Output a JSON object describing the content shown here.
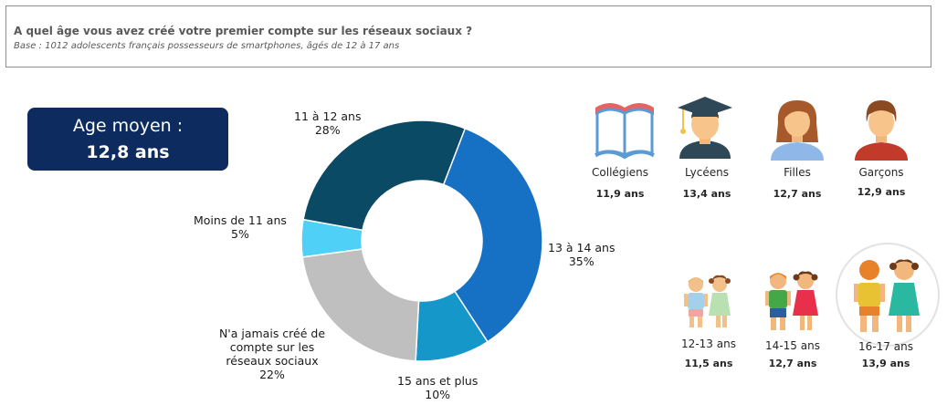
{
  "header": {
    "title": "A quel âge vous avez créé votre premier compte sur les réseaux sociaux ?",
    "subtitle": "Base : 1012 adolescents français possesseurs de smartphones, âgés de 12 à 17 ans"
  },
  "average": {
    "label": "Age moyen :",
    "value": "12,8 ans"
  },
  "chart_data": {
    "type": "pie",
    "donut": true,
    "slices": [
      {
        "label": "13 à 14 ans",
        "pct_label": "35%",
        "value": 35,
        "color": "#1670c3"
      },
      {
        "label": "15 ans et plus",
        "pct_label": "10%",
        "value": 10,
        "color": "#1597c9"
      },
      {
        "label": "N'a jamais créé de compte sur les réseaux sociaux",
        "pct_label": "22%",
        "value": 22,
        "color": "#bfbfbf"
      },
      {
        "label": "Moins de 11 ans",
        "pct_label": "5%",
        "value": 5,
        "color": "#4fd0f7"
      },
      {
        "label": "11 à 12 ans",
        "pct_label": "28%",
        "value": 28,
        "color": "#0a4a64"
      }
    ]
  },
  "segments": [
    {
      "label": "Collégiens",
      "value": "11,9 ans",
      "icon": "book-icon"
    },
    {
      "label": "Lycéens",
      "value": "13,4 ans",
      "icon": "graduate-icon"
    },
    {
      "label": "Filles",
      "value": "12,7 ans",
      "icon": "girl-icon"
    },
    {
      "label": "Garçons",
      "value": "12,9 ans",
      "icon": "boy-icon"
    },
    {
      "label": "12-13 ans",
      "value": "11,5 ans",
      "icon": "kids-12-13-icon"
    },
    {
      "label": "14-15 ans",
      "value": "12,7 ans",
      "icon": "kids-14-15-icon"
    },
    {
      "label": "16-17 ans",
      "value": "13,9 ans",
      "icon": "kids-16-17-icon"
    }
  ]
}
